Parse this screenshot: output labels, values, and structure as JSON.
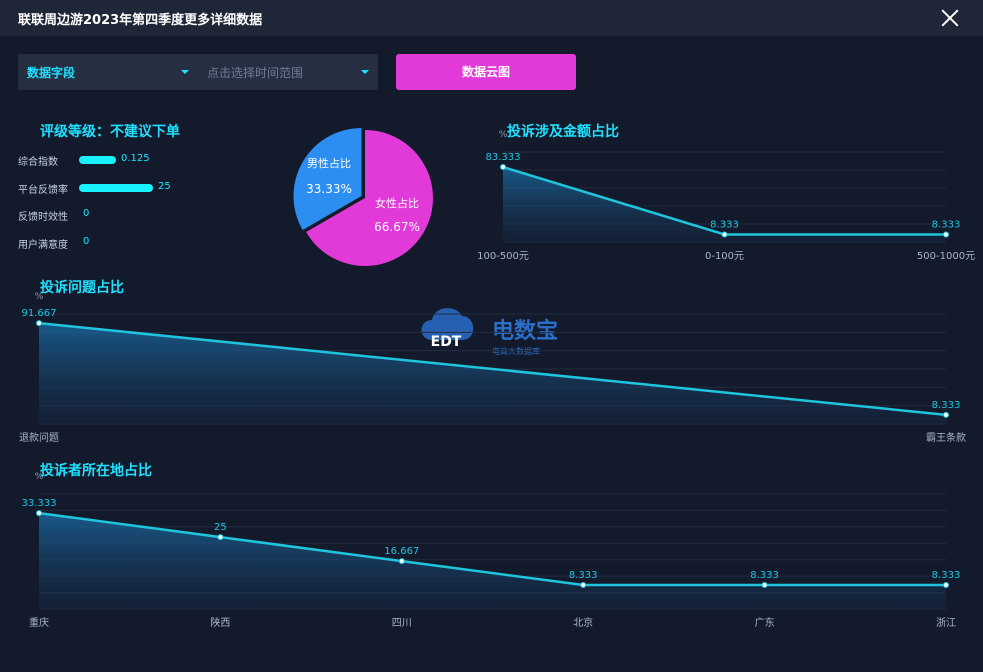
{
  "window": {
    "title": "联联周边游2023年第四季度更多详细数据"
  },
  "toolbar": {
    "field_select": "数据字段",
    "time_range_placeholder": "点击选择时间范围",
    "cloud_button": "数据云图"
  },
  "rating": {
    "title": "评级等级：不建议下单",
    "items": [
      {
        "label": "综合指数",
        "value": "0.125"
      },
      {
        "label": "平台反馈率",
        "value": "25"
      },
      {
        "label": "反馈时效性",
        "value": "0"
      },
      {
        "label": "用户满意度",
        "value": "0"
      }
    ],
    "bar_fraction": [
      0.25,
      0.5,
      0,
      0
    ]
  },
  "gender": {
    "male_label": "男性占比",
    "male_value": "33.33%",
    "female_label": "女性占比",
    "female_value": "66.67%",
    "male_share": 33.33,
    "female_share": 66.67,
    "colors": {
      "male": "#2b8ef0",
      "female": "#e23ad8"
    }
  },
  "watermark": {
    "main": "电数宝",
    "sub": "电商大数据库",
    "logo": "EDT"
  },
  "chart_data": [
    {
      "type": "area",
      "title": "投诉涉及金额占比",
      "ylabel": "%",
      "categories": [
        "100-500元",
        "0-100元",
        "500-1000元"
      ],
      "values": [
        83.333,
        8.333,
        8.333
      ],
      "labels": [
        "83.333",
        "8.333",
        "8.333"
      ],
      "ylim": [
        0,
        100
      ],
      "grid": true,
      "color": "#1ec5dc"
    },
    {
      "type": "area",
      "title": "投诉问题占比",
      "ylabel": "%",
      "categories": [
        "退款问题",
        "霸王条款"
      ],
      "values": [
        91.667,
        8.333
      ],
      "labels": [
        "91.667",
        "8.333"
      ],
      "ylim": [
        0,
        100
      ],
      "grid": true,
      "color": "#1ec5dc"
    },
    {
      "type": "area",
      "title": "投诉者所在地占比",
      "ylabel": "%",
      "categories": [
        "重庆",
        "陕西",
        "四川",
        "北京",
        "广东",
        "浙江"
      ],
      "values": [
        33.333,
        25,
        16.667,
        8.333,
        8.333,
        8.333
      ],
      "labels": [
        "33.333",
        "25",
        "16.667",
        "8.333",
        "8.333",
        "8.333"
      ],
      "ylim": [
        0,
        40
      ],
      "grid": true,
      "color": "#1ec5dc"
    }
  ]
}
